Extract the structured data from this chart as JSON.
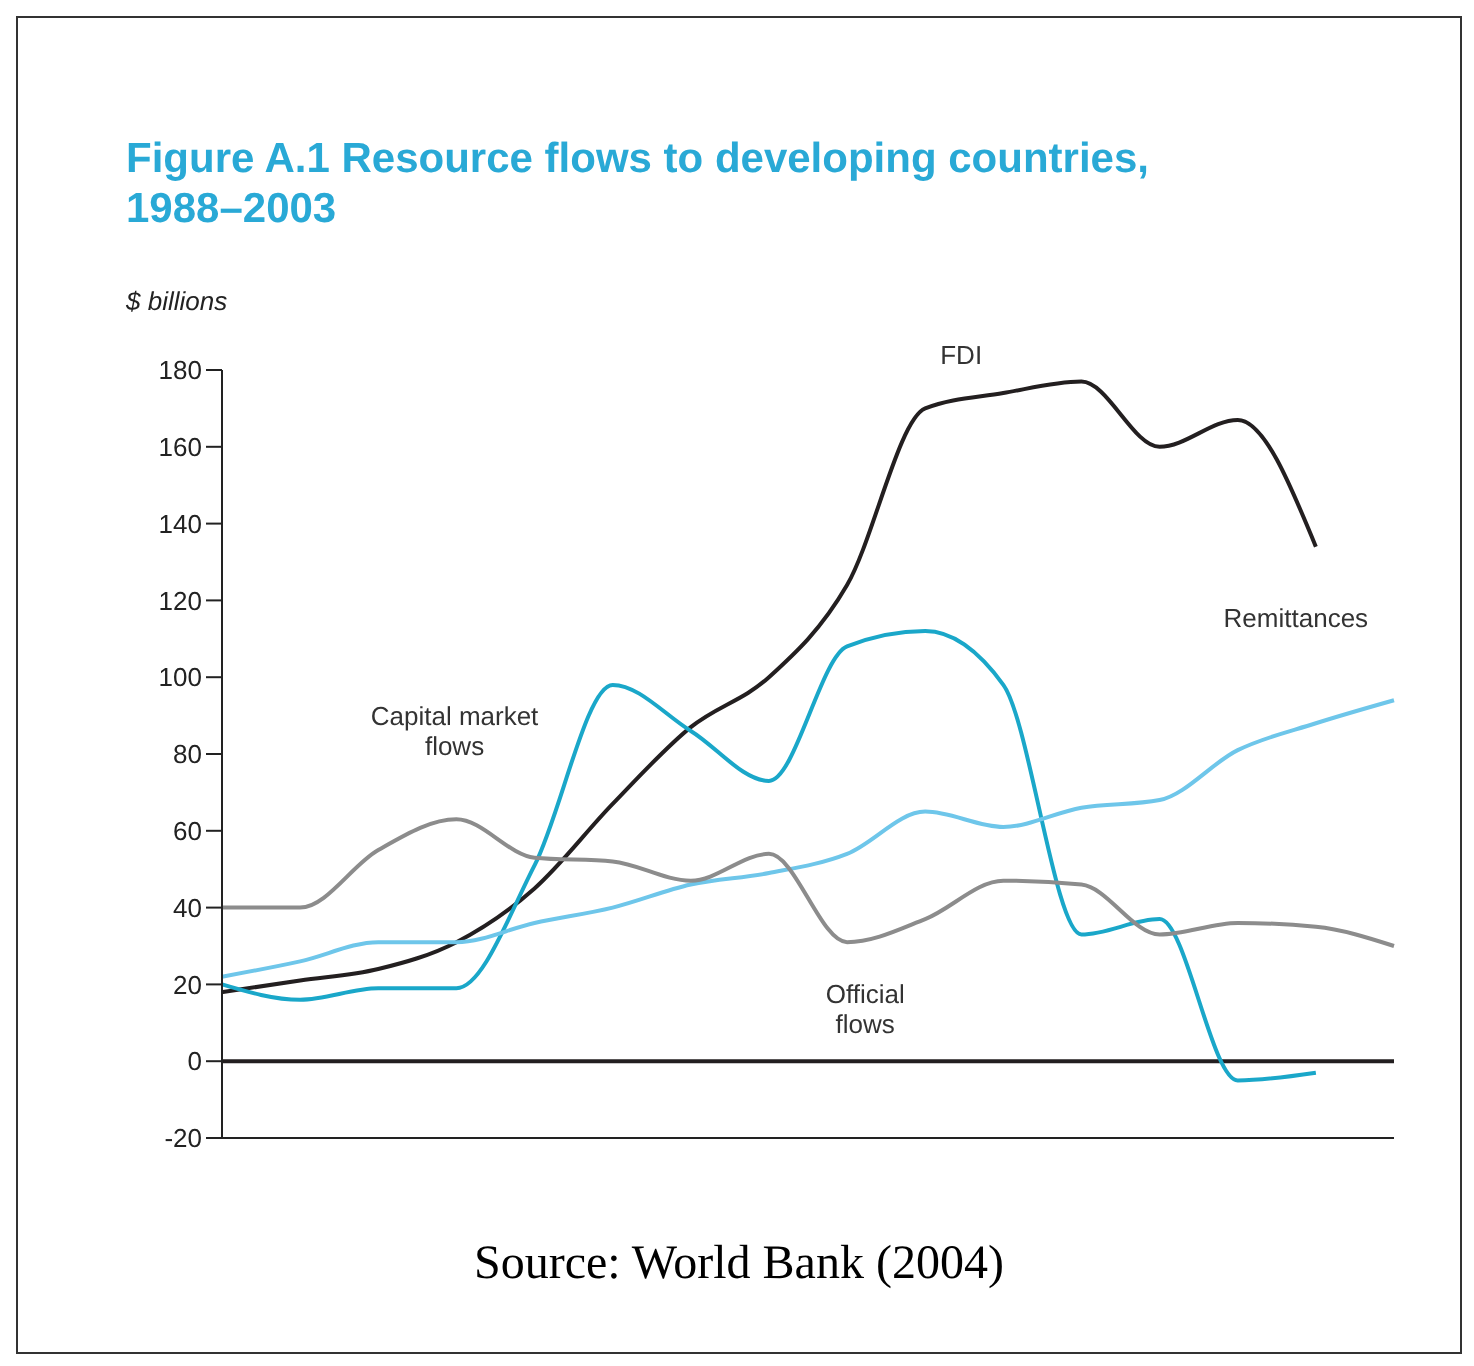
{
  "chart_data": {
    "type": "line",
    "title": "Figure A.1  Resource flows to developing countries, 1988–2003",
    "ylabel": "$ billions",
    "annotations": [
      "Source: World Bank (2004)"
    ],
    "categories": [
      null,
      null,
      null,
      null,
      null,
      null,
      null,
      null,
      null,
      null,
      null,
      null,
      null,
      null,
      null,
      null
    ],
    "series": [
      {
        "name": "FDI",
        "color": "#231f20",
        "values": [
          18,
          21,
          24,
          31,
          45,
          67,
          87,
          100,
          124,
          170,
          174,
          177,
          160,
          167,
          134,
          null
        ]
      },
      {
        "name": "Capital market\nflows",
        "color": "#1aa7c9",
        "values": [
          20,
          16,
          19,
          19,
          51,
          98,
          86,
          73,
          108,
          112,
          98,
          33,
          37,
          -5,
          -3,
          null
        ]
      },
      {
        "name": "Remittances",
        "color": "#6ec6ea",
        "values": [
          22,
          26,
          31,
          31,
          36,
          40,
          46,
          49,
          54,
          65,
          61,
          66,
          68,
          81,
          88,
          94
        ]
      },
      {
        "name": "Official\nflows",
        "color": "#8c8c8c",
        "values": [
          40,
          40,
          55,
          63,
          53,
          52,
          47,
          54,
          31,
          37,
          47,
          46,
          33,
          36,
          35,
          30
        ]
      }
    ],
    "ylim": [
      -20,
      180
    ],
    "yticks": [
      -20,
      0,
      20,
      40,
      60,
      80,
      100,
      120,
      140,
      160,
      180
    ],
    "ref_lines": [
      {
        "axis": "y",
        "value": 0,
        "color": "#231f20"
      }
    ],
    "tick_labels": "y",
    "grid": false,
    "legend": false,
    "marker": "none",
    "line_style": "solid"
  }
}
